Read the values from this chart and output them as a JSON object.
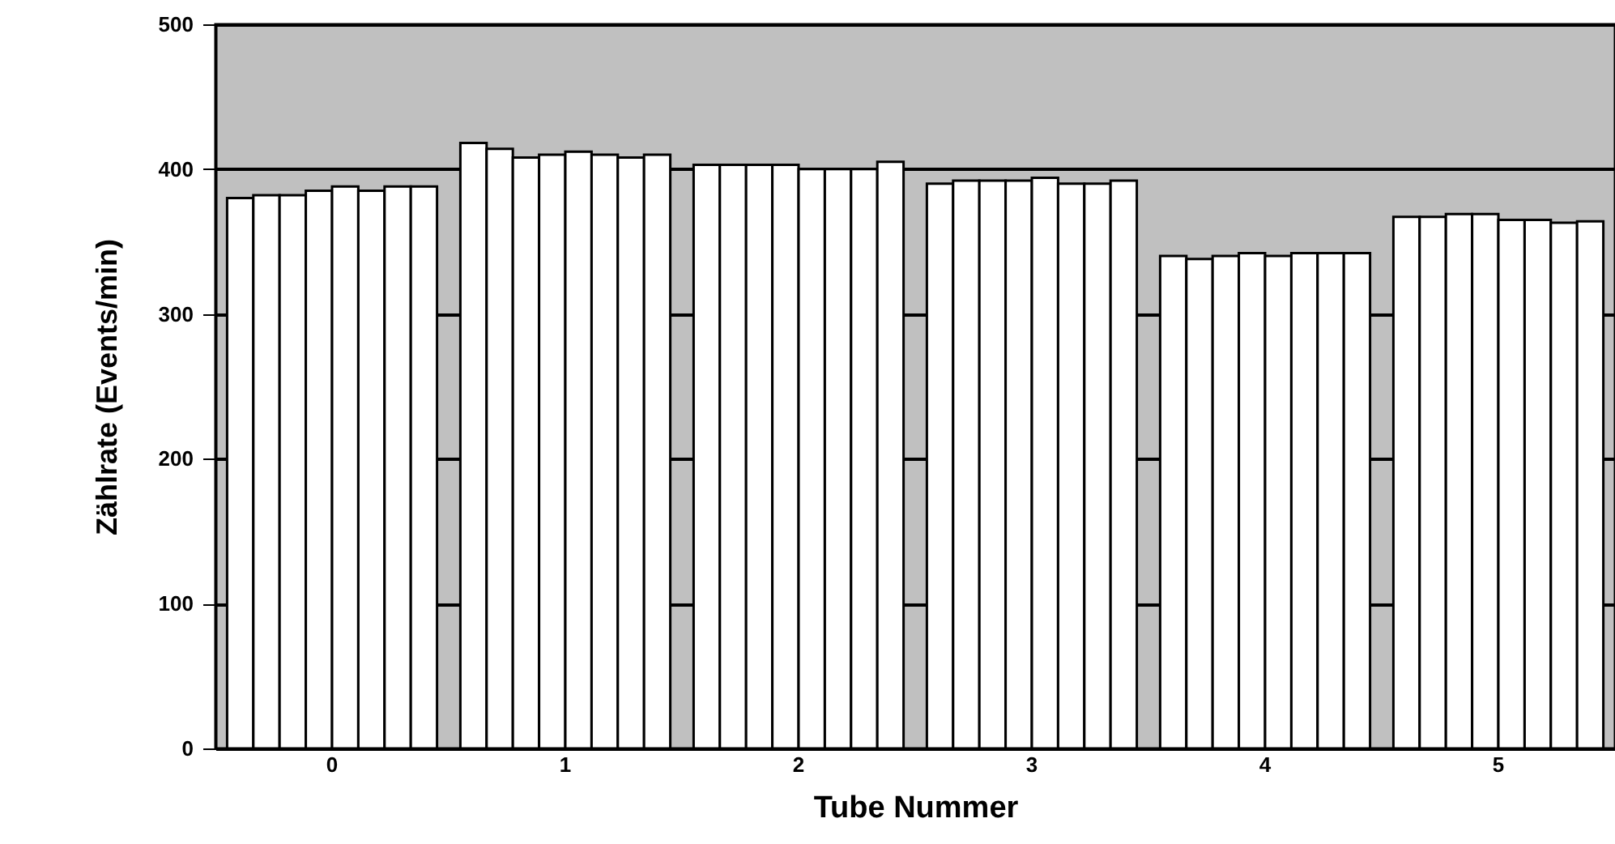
{
  "chart_data": {
    "type": "bar",
    "xlabel": "Tube Nummer",
    "ylabel": "Zählrate (Events/min)",
    "categories": [
      "0",
      "1",
      "2",
      "3",
      "4",
      "5"
    ],
    "series": [
      {
        "color": "#ffffff",
        "values": [
          380,
          418,
          403,
          390,
          340,
          367
        ]
      },
      {
        "color": "#ffffff",
        "values": [
          382,
          414,
          403,
          392,
          338,
          367
        ]
      },
      {
        "color": "#ffffff",
        "values": [
          382,
          408,
          403,
          392,
          340,
          369
        ]
      },
      {
        "color": "#ffffff",
        "values": [
          385,
          410,
          403,
          392,
          342,
          369
        ]
      },
      {
        "color": "#ffffff",
        "values": [
          388,
          412,
          400,
          394,
          340,
          365
        ]
      },
      {
        "color": "#ffffff",
        "values": [
          385,
          410,
          400,
          390,
          342,
          365
        ]
      },
      {
        "color": "#ffffff",
        "values": [
          388,
          408,
          400,
          390,
          342,
          363
        ]
      },
      {
        "color": "#ffffff",
        "values": [
          388,
          410,
          405,
          392,
          342,
          364
        ]
      }
    ],
    "ylim": [
      0,
      500
    ],
    "yticks": [
      0,
      100,
      200,
      300,
      400,
      500
    ],
    "grid": "y"
  }
}
